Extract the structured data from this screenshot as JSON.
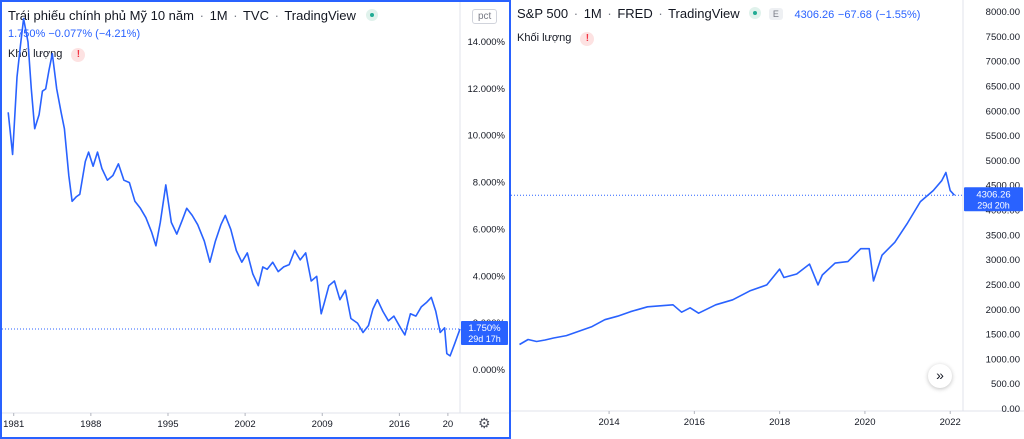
{
  "left": {
    "title": "Trái phiếu chính phủ Mỹ 10 năm",
    "interval": "1M",
    "source": "TVC",
    "platform": "TradingView",
    "value": "1.750%",
    "change": "−0.077%",
    "change_pct": "(−4.21%)",
    "volume_label": "Khối lượng",
    "scale_button": "pct",
    "price_tag": "1.750%",
    "countdown": "29d 17h"
  },
  "right": {
    "title": "S&P 500",
    "interval": "1M",
    "source": "FRED",
    "platform": "TradingView",
    "badge": "E",
    "value": "4306.26",
    "change": "−67.68",
    "change_pct": "(−1.55%)",
    "volume_label": "Khối lượng",
    "price_tag": "4306.26",
    "countdown": "29d 20h"
  },
  "colors": {
    "line": "#2962ff",
    "accent": "#2962ff",
    "axis_text": "#131722"
  },
  "icons": [
    "status-dot-icon",
    "warning-icon",
    "settings-gear-icon",
    "scroll-forward-icon"
  ],
  "chart_data": [
    {
      "type": "line",
      "title": "Trái phiếu chính phủ Mỹ 10 năm",
      "xlabel": "",
      "ylabel": "",
      "x_ticks": [
        "1981",
        "1988",
        "1995",
        "2002",
        "2009",
        "2016",
        "20"
      ],
      "y_ticks": [
        "0.000%",
        "2.000%",
        "4.000%",
        "6.000%",
        "8.000%",
        "10.000%",
        "12.000%",
        "14.000%"
      ],
      "ylim": [
        -1.2,
        15.6
      ],
      "xlim": [
        1980.3,
        2021.5
      ],
      "grid": false,
      "last_value": 1.75,
      "series": [
        {
          "x": [
            1980.5,
            1980.9,
            1981.3,
            1981.6,
            1981.9,
            1982.3,
            1982.6,
            1982.9,
            1983.3,
            1983.6,
            1983.9,
            1984.2,
            1984.5,
            1984.9,
            1985.3,
            1985.6,
            1986.0,
            1986.3,
            1986.7,
            1987.0,
            1987.5,
            1987.8,
            1988.2,
            1988.6,
            1989.0,
            1989.5,
            1990.0,
            1990.5,
            1991.0,
            1991.5,
            1992.0,
            1992.5,
            1993.0,
            1993.5,
            1993.9,
            1994.3,
            1994.8,
            1995.3,
            1995.8,
            1996.3,
            1996.7,
            1997.2,
            1997.7,
            1998.3,
            1998.8,
            1999.3,
            1999.8,
            2000.2,
            2000.7,
            2001.2,
            2001.7,
            2002.2,
            2002.7,
            2003.2,
            2003.6,
            2004.0,
            2004.5,
            2005.0,
            2005.5,
            2006.0,
            2006.5,
            2007.0,
            2007.5,
            2008.0,
            2008.5,
            2008.9,
            2009.2,
            2009.6,
            2010.1,
            2010.6,
            2011.1,
            2011.6,
            2012.2,
            2012.7,
            2013.2,
            2013.6,
            2014.0,
            2014.5,
            2015.0,
            2015.5,
            2016.1,
            2016.5,
            2017.0,
            2017.5,
            2018.0,
            2018.5,
            2018.9,
            2019.3,
            2019.7,
            2020.1,
            2020.3,
            2020.6,
            2021.0,
            2021.5
          ],
          "values": [
            11.0,
            9.2,
            12.5,
            13.8,
            15.0,
            14.0,
            12.0,
            10.3,
            10.9,
            11.9,
            12.0,
            12.8,
            13.5,
            12.0,
            11.0,
            10.3,
            8.3,
            7.2,
            7.4,
            7.5,
            8.9,
            9.3,
            8.7,
            9.3,
            8.6,
            8.1,
            8.3,
            8.8,
            8.1,
            8.0,
            7.2,
            6.9,
            6.5,
            5.9,
            5.3,
            6.3,
            7.9,
            6.3,
            5.8,
            6.4,
            6.9,
            6.6,
            6.2,
            5.5,
            4.6,
            5.5,
            6.2,
            6.6,
            6.0,
            5.1,
            4.6,
            5.0,
            4.1,
            3.6,
            4.4,
            4.3,
            4.6,
            4.2,
            4.4,
            4.5,
            5.1,
            4.7,
            5.0,
            3.8,
            4.0,
            2.4,
            2.9,
            3.6,
            3.8,
            3.0,
            3.4,
            2.2,
            2.0,
            1.6,
            1.9,
            2.6,
            3.0,
            2.5,
            2.1,
            2.3,
            1.8,
            1.5,
            2.4,
            2.3,
            2.7,
            2.9,
            3.1,
            2.5,
            1.6,
            1.8,
            0.7,
            0.6,
            1.1,
            1.75
          ]
        }
      ]
    },
    {
      "type": "line",
      "title": "S&P 500",
      "xlabel": "",
      "ylabel": "",
      "x_ticks": [
        "2014",
        "2016",
        "2018",
        "2020",
        "2022"
      ],
      "y_ticks": [
        "0.00",
        "500.00",
        "1000.00",
        "1500.00",
        "2000.00",
        "2500.00",
        "3000.00",
        "3500.00",
        "4000.00",
        "4500.00",
        "5000.00",
        "5500.00",
        "6000.00",
        "6500.00",
        "7000.00",
        "7500.00",
        "8000.00"
      ],
      "ylim": [
        -500,
        8200
      ],
      "xlim": [
        2011.7,
        2022.3
      ],
      "grid": false,
      "last_value": 4306.26,
      "series": [
        {
          "x": [
            2011.9,
            2012.1,
            2012.3,
            2012.5,
            2012.7,
            2013.0,
            2013.3,
            2013.6,
            2013.9,
            2014.2,
            2014.5,
            2014.9,
            2015.2,
            2015.5,
            2015.7,
            2015.9,
            2016.1,
            2016.5,
            2016.9,
            2017.3,
            2017.7,
            2018.0,
            2018.1,
            2018.4,
            2018.7,
            2018.9,
            2019.0,
            2019.3,
            2019.6,
            2019.9,
            2020.1,
            2020.2,
            2020.4,
            2020.7,
            2020.9,
            2021.0,
            2021.3,
            2021.6,
            2021.8,
            2021.9,
            2022.0,
            2022.1
          ],
          "values": [
            1300,
            1400,
            1360,
            1390,
            1430,
            1480,
            1570,
            1660,
            1800,
            1870,
            1960,
            2060,
            2080,
            2100,
            1950,
            2040,
            1930,
            2100,
            2200,
            2380,
            2500,
            2820,
            2650,
            2720,
            2920,
            2500,
            2700,
            2940,
            2970,
            3230,
            3230,
            2580,
            3100,
            3360,
            3620,
            3750,
            4180,
            4400,
            4600,
            4766,
            4400,
            4306
          ]
        }
      ]
    }
  ]
}
